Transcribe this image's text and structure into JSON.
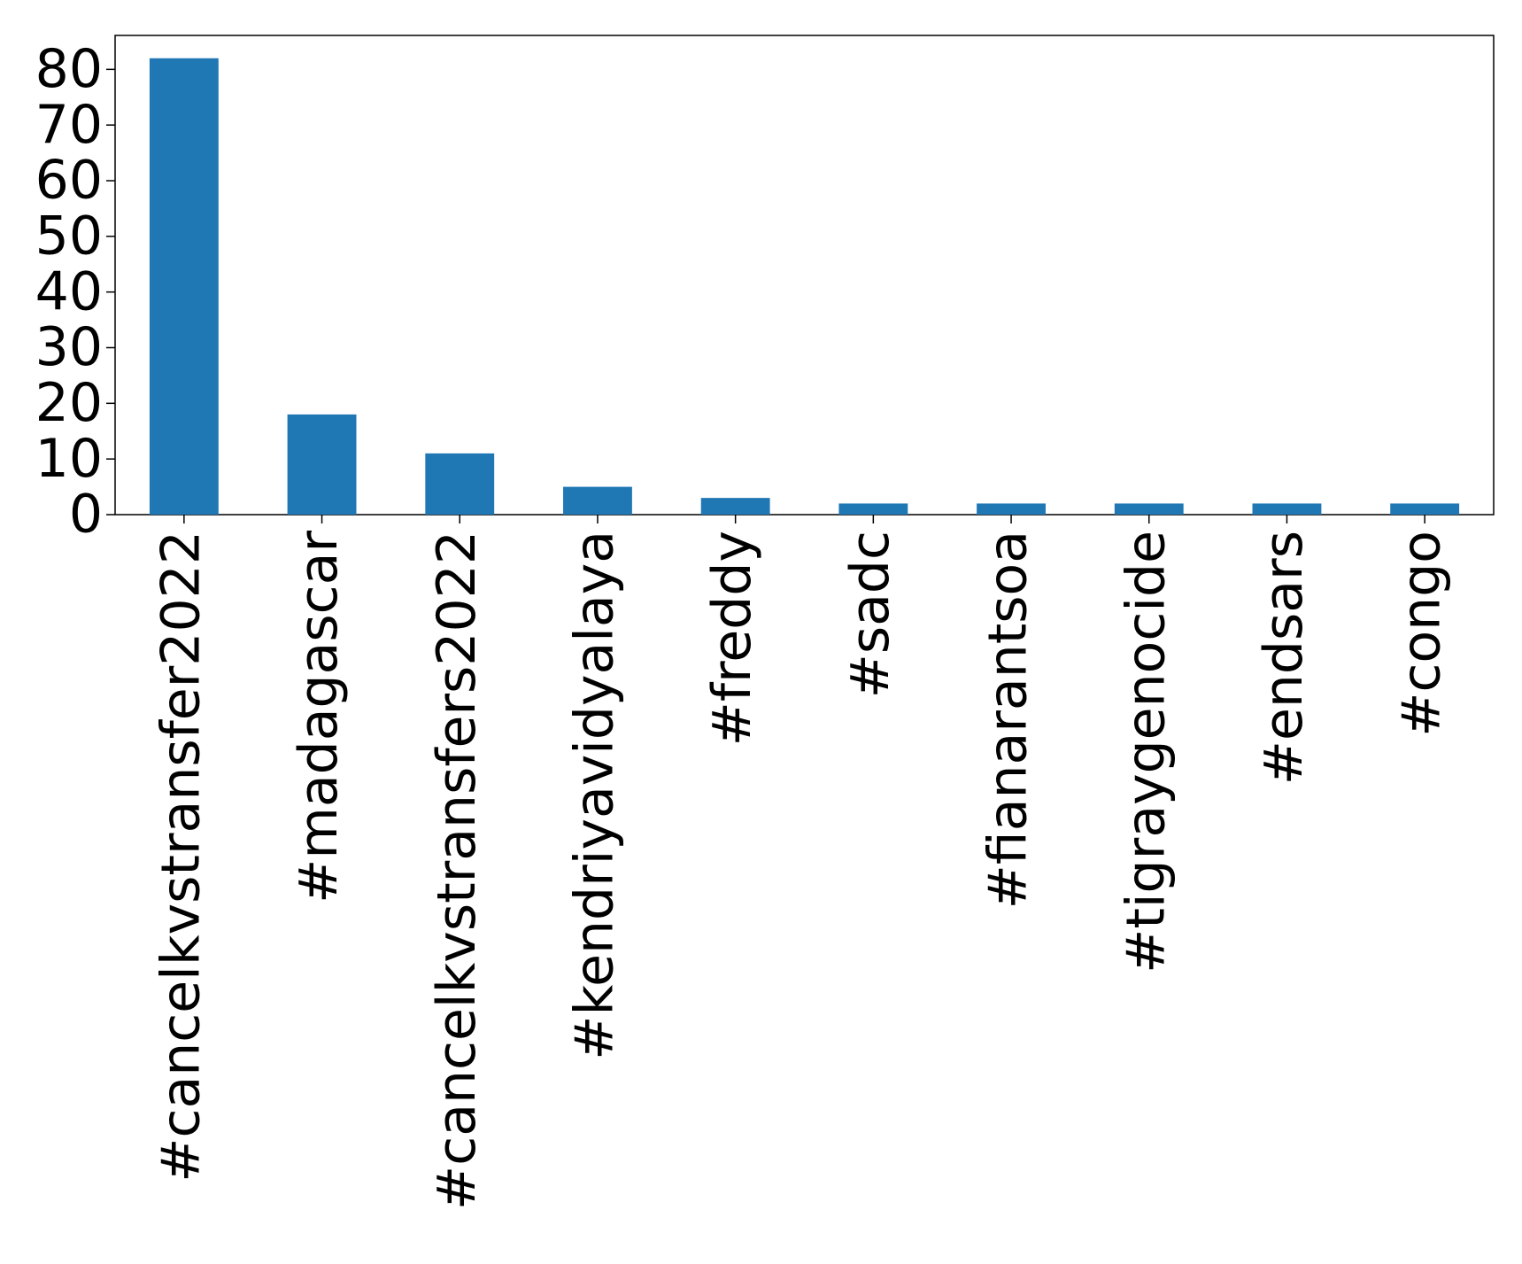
{
  "chart_data": {
    "type": "bar",
    "categories": [
      "#cancelkvstransfer2022",
      "#madagascar",
      "#cancelkvstransfers2022",
      "#kendriyavidyalaya",
      "#freddy",
      "#sadc",
      "#fianarantsoa",
      "#tigraygenocide",
      "#endsars",
      "#congo"
    ],
    "values": [
      82,
      18,
      11,
      5,
      3,
      2,
      2,
      2,
      2,
      2
    ],
    "color": "#1f77b4",
    "ylim": [
      0,
      86.1
    ],
    "yticks": [
      0,
      10,
      20,
      30,
      40,
      50,
      60,
      70,
      80
    ],
    "grid": false
  }
}
